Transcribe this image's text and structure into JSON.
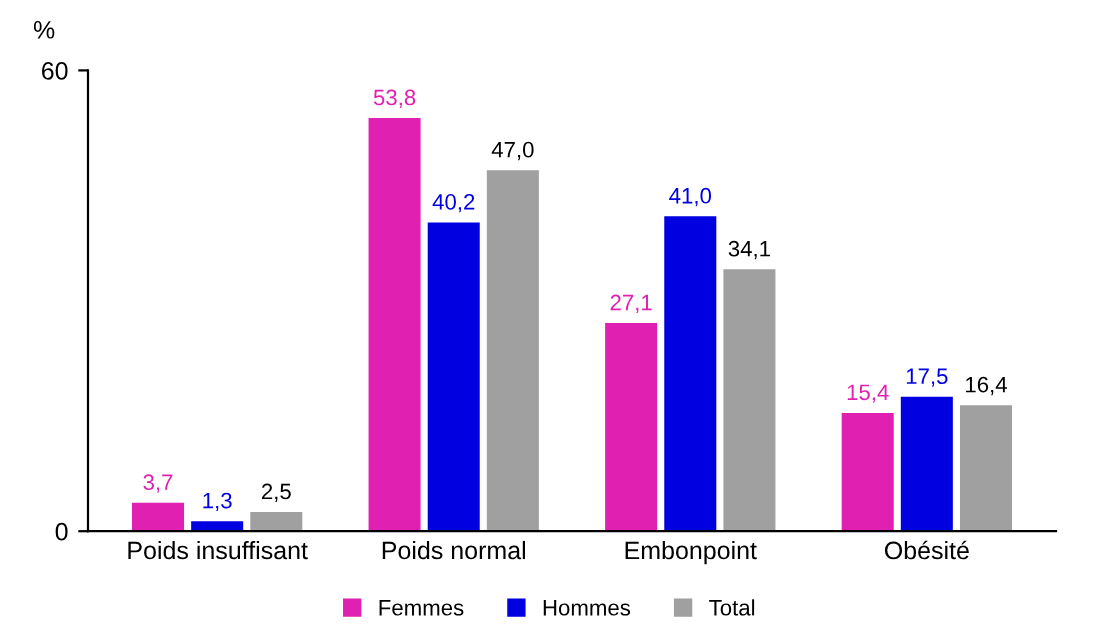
{
  "chart_data": {
    "type": "bar",
    "ylabel": "%",
    "categories": [
      "Poids insuffisant",
      "Poids normal",
      "Embonpoint",
      "Obésité"
    ],
    "series": [
      {
        "name": "Femmes",
        "color": "#e020b0",
        "values": [
          3.7,
          53.8,
          27.1,
          15.4
        ],
        "value_labels": [
          "3,7",
          "53,8",
          "27,1",
          "15,4"
        ]
      },
      {
        "name": "Hommes",
        "color": "#0000e0",
        "values": [
          1.3,
          40.2,
          41.0,
          17.5
        ],
        "value_labels": [
          "1,3",
          "40,2",
          "41,0",
          "17,5"
        ]
      },
      {
        "name": "Total",
        "color": "#a0a0a0",
        "values": [
          2.5,
          47.0,
          34.1,
          16.4
        ],
        "value_labels": [
          "2,5",
          "47,0",
          "34,1",
          "16,4"
        ]
      }
    ],
    "ylim": [
      0,
      60
    ],
    "yticks": [
      0,
      60
    ],
    "grid": false,
    "legend": "bottom"
  }
}
